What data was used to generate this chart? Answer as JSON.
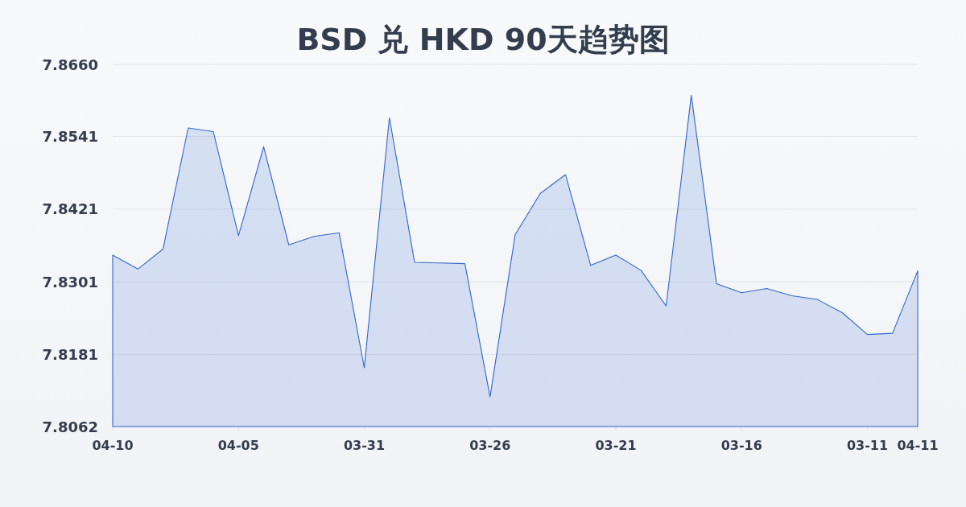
{
  "chart_data": {
    "type": "area",
    "title": "BSD 兑 HKD 90天趋势图",
    "categories": [
      "04-10",
      null,
      null,
      null,
      null,
      "04-05",
      null,
      null,
      null,
      null,
      "03-31",
      null,
      null,
      null,
      null,
      "03-26",
      null,
      null,
      null,
      null,
      "03-21",
      null,
      null,
      null,
      null,
      "03-16",
      null,
      null,
      null,
      null,
      "03-11",
      null,
      "04-11"
    ],
    "series": [
      {
        "color": "#3366cc",
        "values": [
          7.8345,
          7.8322,
          7.8355,
          7.8555,
          7.8549,
          7.8377,
          7.8524,
          7.8362,
          7.8376,
          7.8382,
          7.8159,
          7.8572,
          7.8333,
          7.8332,
          7.8331,
          7.8111,
          7.8379,
          7.8447,
          7.8478,
          7.8328,
          7.8345,
          7.832,
          7.8261,
          7.8609,
          7.8298,
          7.8283,
          7.829,
          7.8278,
          7.8272,
          7.825,
          7.8214,
          7.8216,
          7.8319
        ]
      }
    ],
    "ylim": [
      7.8062,
      7.866
    ],
    "yticks": [
      7.8062,
      7.8181,
      7.8301,
      7.8421,
      7.8541,
      {
        "value": 7.866,
        "label": "7.8660"
      }
    ],
    "grid": "y"
  }
}
